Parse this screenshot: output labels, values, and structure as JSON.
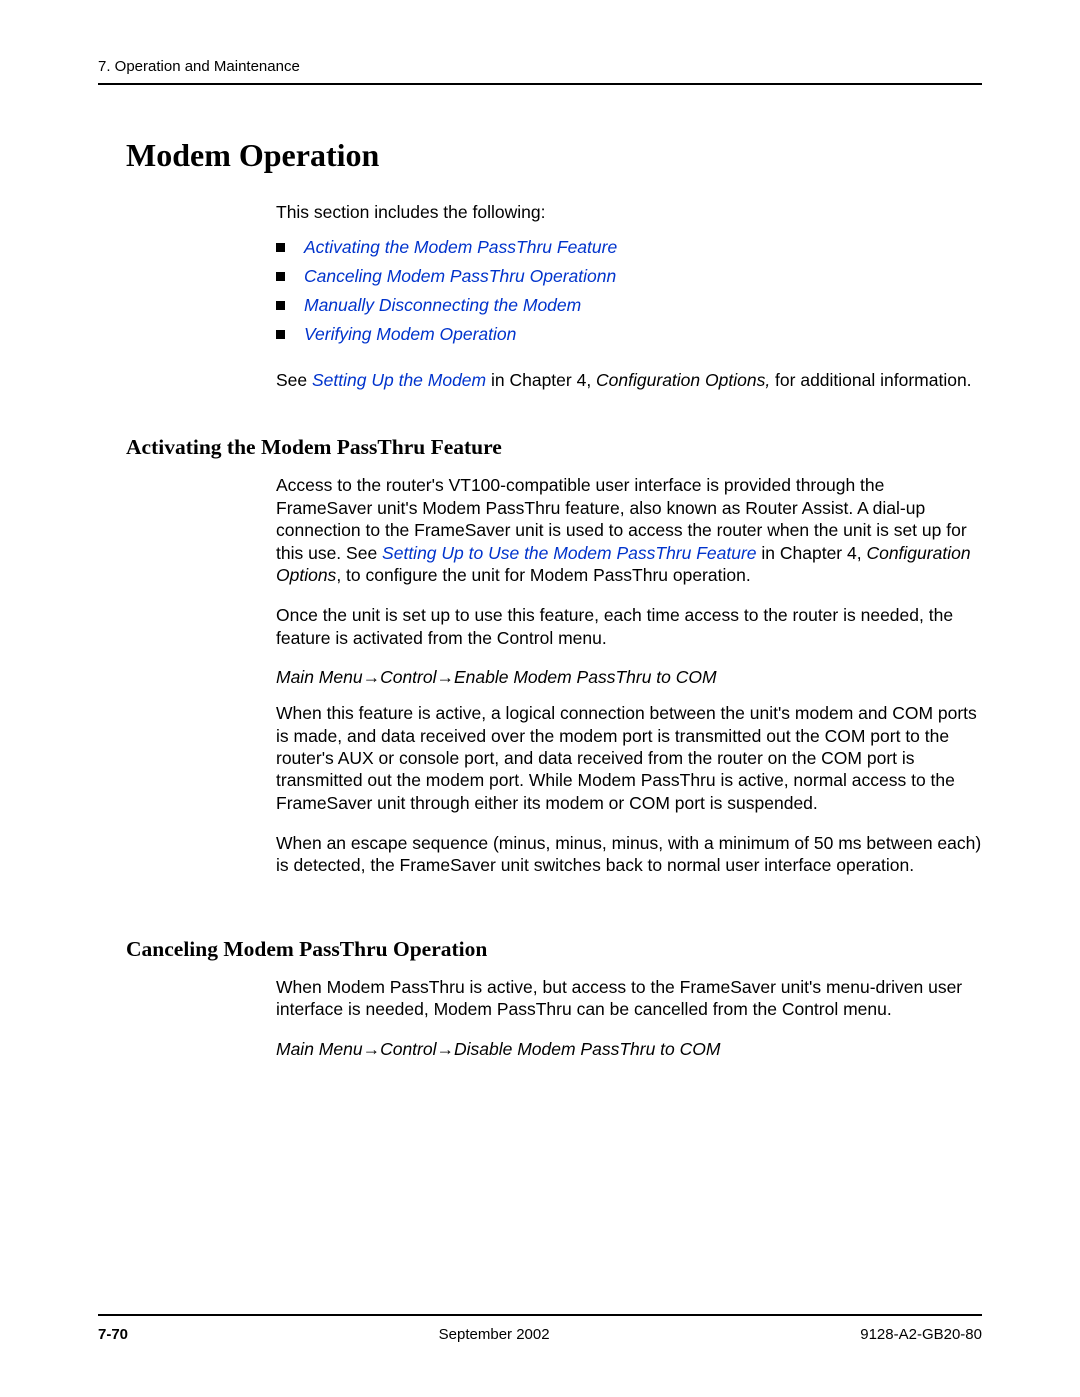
{
  "header": {
    "chapter": "7. Operation and Maintenance"
  },
  "section": {
    "title": "Modem Operation",
    "intro": "This section includes the following:",
    "bullets": [
      "Activating the Modem PassThru Feature",
      "Canceling Modem PassThru Operationn",
      "Manually Disconnecting the Modem",
      "Verifying Modem Operation"
    ],
    "see_prefix": "See ",
    "see_link": "Setting Up the Modem",
    "see_mid": " in Chapter 4, ",
    "see_italic": "Configuration Options,",
    "see_suffix": " for additional information."
  },
  "sub1": {
    "title": "Activating the Modem PassThru Feature",
    "p1_a": "Access to the router's VT100-compatible user interface is provided through the FrameSaver unit's Modem PassThru feature, also known as Router Assist. A dial-up connection to the FrameSaver unit is used to access the router when the unit is set up for this use. See ",
    "p1_link": "Setting Up to Use the Modem PassThru Feature",
    "p1_b": " in Chapter 4, ",
    "p1_italic": "Configuration Options",
    "p1_c": ", to configure the unit for Modem PassThru operation.",
    "p2": "Once the unit is set up to use this feature, each time access to the router is needed, the feature is activated from the Control menu.",
    "menu": "Main Menu→Control→Enable Modem PassThru to COM",
    "p3": "When this feature is active, a logical connection between the unit's modem and COM ports is made, and data received over the modem port is transmitted out the COM port to the router's AUX or console port, and data received from the router on the COM port is transmitted out the modem port. While Modem PassThru is active, normal access to the FrameSaver unit through either its modem or COM port is suspended.",
    "p4": "When an escape sequence (minus, minus, minus, with a minimum of 50 ms between each) is detected, the FrameSaver unit switches back to normal user interface operation."
  },
  "sub2": {
    "title": "Canceling Modem PassThru Operation",
    "p1": "When Modem PassThru is active, but access to the FrameSaver unit's menu-driven user interface is needed, Modem PassThru can be cancelled from the Control menu.",
    "menu": "Main Menu→Control→Disable Modem PassThru to COM"
  },
  "footer": {
    "page": "7-70",
    "date": "September 2002",
    "docnum": "9128-A2-GB20-80"
  },
  "colors": {
    "link": "#0033cc",
    "text": "#000000",
    "background": "#ffffff"
  }
}
